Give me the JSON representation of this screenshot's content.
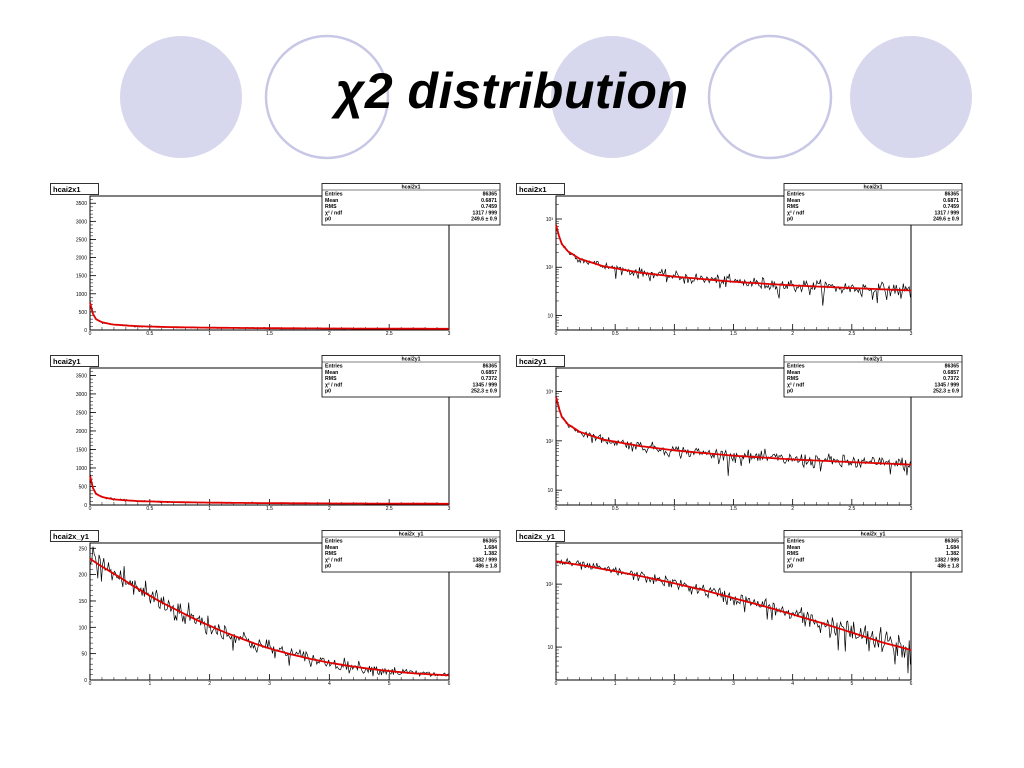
{
  "slide": {
    "title": "χ2 distribution",
    "decor_circle_fill": "#d7d7ee",
    "decor_circle_stroke": "#c8c8e6"
  },
  "colors": {
    "data": "#000000",
    "fit": "#e00000",
    "frame": "#000000",
    "stats_bg": "#ffffff"
  },
  "chart_data": [
    {
      "type": "line",
      "name_label": "hcai2x1",
      "scale": "linear",
      "xlim": [
        0,
        3
      ],
      "ylim": [
        0,
        3700
      ],
      "xticks": [
        {
          "v": 0,
          "t": "0"
        },
        {
          "v": 0.5,
          "t": "0.5"
        },
        {
          "v": 1,
          "t": "1"
        },
        {
          "v": 1.5,
          "t": "1.5"
        },
        {
          "v": 2,
          "t": "2"
        },
        {
          "v": 2.5,
          "t": "2.5"
        },
        {
          "v": 3,
          "t": "3"
        }
      ],
      "yticks": [
        {
          "v": 0,
          "t": "0"
        },
        {
          "v": 500,
          "t": "500"
        },
        {
          "v": 1000,
          "t": "1000"
        },
        {
          "v": 1500,
          "t": "1500"
        },
        {
          "v": 2000,
          "t": "2000"
        },
        {
          "v": 2500,
          "t": "2500"
        },
        {
          "v": 3000,
          "t": "3000"
        },
        {
          "v": 3500,
          "t": "3500"
        }
      ],
      "fit": {
        "x": [
          0.005,
          0.02,
          0.05,
          0.1,
          0.2,
          0.4,
          0.7,
          1.0,
          1.5,
          2.0,
          2.5,
          3.0
        ],
        "y": [
          760,
          480,
          300,
          215,
          150,
          105,
          78,
          64,
          50,
          42,
          37,
          33
        ]
      },
      "stats": {
        "title": "hcai2x1",
        "rows": [
          [
            "Entries",
            "86365"
          ],
          [
            "Mean",
            "0.6871"
          ],
          [
            "RMS",
            "0.7459"
          ],
          [
            "χ² / ndf",
            "1317 / 999"
          ],
          [
            "p0",
            "249.6 ± 0.9"
          ]
        ]
      }
    },
    {
      "type": "line",
      "name_label": "hcai2x1",
      "scale": "log",
      "xlim": [
        0,
        3
      ],
      "ylim": [
        5,
        3000
      ],
      "xticks": [
        {
          "v": 0,
          "t": "0"
        },
        {
          "v": 0.5,
          "t": "0.5"
        },
        {
          "v": 1,
          "t": "1"
        },
        {
          "v": 1.5,
          "t": "1.5"
        },
        {
          "v": 2,
          "t": "2"
        },
        {
          "v": 2.5,
          "t": "2.5"
        },
        {
          "v": 3,
          "t": "3"
        }
      ],
      "yticks": [
        {
          "v": 10,
          "t": "10"
        },
        {
          "v": 100,
          "t": "10²"
        },
        {
          "v": 1000,
          "t": "10³"
        }
      ],
      "fit": {
        "x": [
          0.005,
          0.02,
          0.05,
          0.1,
          0.2,
          0.4,
          0.7,
          1.0,
          1.5,
          2.0,
          2.5,
          3.0
        ],
        "y": [
          760,
          480,
          300,
          215,
          150,
          105,
          78,
          64,
          50,
          42,
          37,
          33
        ]
      },
      "stats": {
        "title": "hcai2x1",
        "rows": [
          [
            "Entries",
            "86365"
          ],
          [
            "Mean",
            "0.6871"
          ],
          [
            "RMS",
            "0.7459"
          ],
          [
            "χ² / ndf",
            "1317 / 999"
          ],
          [
            "p0",
            "249.6 ± 0.9"
          ]
        ]
      }
    },
    {
      "type": "line",
      "name_label": "hcai2y1",
      "scale": "linear",
      "xlim": [
        0,
        3
      ],
      "ylim": [
        0,
        3700
      ],
      "xticks": [
        {
          "v": 0,
          "t": "0"
        },
        {
          "v": 0.5,
          "t": "0.5"
        },
        {
          "v": 1,
          "t": "1"
        },
        {
          "v": 1.5,
          "t": "1.5"
        },
        {
          "v": 2,
          "t": "2"
        },
        {
          "v": 2.5,
          "t": "2.5"
        },
        {
          "v": 3,
          "t": "3"
        }
      ],
      "yticks": [
        {
          "v": 0,
          "t": "0"
        },
        {
          "v": 500,
          "t": "500"
        },
        {
          "v": 1000,
          "t": "1000"
        },
        {
          "v": 1500,
          "t": "1500"
        },
        {
          "v": 2000,
          "t": "2000"
        },
        {
          "v": 2500,
          "t": "2500"
        },
        {
          "v": 3000,
          "t": "3000"
        },
        {
          "v": 3500,
          "t": "3500"
        }
      ],
      "fit": {
        "x": [
          0.005,
          0.02,
          0.05,
          0.1,
          0.2,
          0.4,
          0.7,
          1.0,
          1.5,
          2.0,
          2.5,
          3.0
        ],
        "y": [
          780,
          490,
          305,
          218,
          152,
          106,
          79,
          64,
          50,
          42,
          37,
          33
        ]
      },
      "stats": {
        "title": "hcai2y1",
        "rows": [
          [
            "Entries",
            "86365"
          ],
          [
            "Mean",
            "0.6857"
          ],
          [
            "RMS",
            "0.7372"
          ],
          [
            "χ² / ndf",
            "1345 / 999"
          ],
          [
            "p0",
            "252.3 ± 0.9"
          ]
        ]
      }
    },
    {
      "type": "line",
      "name_label": "hcai2y1",
      "scale": "log",
      "xlim": [
        0,
        3
      ],
      "ylim": [
        5,
        3000
      ],
      "xticks": [
        {
          "v": 0,
          "t": "0"
        },
        {
          "v": 0.5,
          "t": "0.5"
        },
        {
          "v": 1,
          "t": "1"
        },
        {
          "v": 1.5,
          "t": "1.5"
        },
        {
          "v": 2,
          "t": "2"
        },
        {
          "v": 2.5,
          "t": "2.5"
        },
        {
          "v": 3,
          "t": "3"
        }
      ],
      "yticks": [
        {
          "v": 10,
          "t": "10"
        },
        {
          "v": 100,
          "t": "10²"
        },
        {
          "v": 1000,
          "t": "10³"
        }
      ],
      "fit": {
        "x": [
          0.005,
          0.02,
          0.05,
          0.1,
          0.2,
          0.4,
          0.7,
          1.0,
          1.5,
          2.0,
          2.5,
          3.0
        ],
        "y": [
          780,
          490,
          305,
          218,
          152,
          106,
          79,
          64,
          50,
          42,
          37,
          33
        ]
      },
      "stats": {
        "title": "hcai2y1",
        "rows": [
          [
            "Entries",
            "86365"
          ],
          [
            "Mean",
            "0.6857"
          ],
          [
            "RMS",
            "0.7372"
          ],
          [
            "χ² / ndf",
            "1345 / 999"
          ],
          [
            "p0",
            "252.3 ± 0.9"
          ]
        ]
      }
    },
    {
      "type": "line",
      "name_label": "hcai2x_y1",
      "scale": "linear",
      "xlim": [
        0,
        6
      ],
      "ylim": [
        0,
        260
      ],
      "xticks": [
        {
          "v": 0,
          "t": "0"
        },
        {
          "v": 1,
          "t": "1"
        },
        {
          "v": 2,
          "t": "2"
        },
        {
          "v": 3,
          "t": "3"
        },
        {
          "v": 4,
          "t": "4"
        },
        {
          "v": 5,
          "t": "5"
        },
        {
          "v": 6,
          "t": "6"
        }
      ],
      "yticks": [
        {
          "v": 0,
          "t": "0"
        },
        {
          "v": 50,
          "t": "50"
        },
        {
          "v": 100,
          "t": "100"
        },
        {
          "v": 150,
          "t": "150"
        },
        {
          "v": 200,
          "t": "200"
        },
        {
          "v": 250,
          "t": "250"
        }
      ],
      "fit": {
        "x": [
          0,
          0.5,
          1,
          1.5,
          2,
          2.5,
          3,
          3.5,
          4,
          4.5,
          5,
          5.5,
          6
        ],
        "y": [
          230,
          195,
          160,
          130,
          103,
          80,
          60,
          45,
          33,
          24,
          17,
          12,
          9
        ]
      },
      "stats": {
        "title": "hcai2x_y1",
        "rows": [
          [
            "Entries",
            "86365"
          ],
          [
            "Mean",
            "1.684"
          ],
          [
            "RMS",
            "1.382"
          ],
          [
            "χ² / ndf",
            "1382 / 999"
          ],
          [
            "p0",
            "486 ± 1.8"
          ]
        ]
      }
    },
    {
      "type": "line",
      "name_label": "hcai2x_y1",
      "scale": "log",
      "xlim": [
        0,
        6
      ],
      "ylim": [
        3,
        450
      ],
      "xticks": [
        {
          "v": 0,
          "t": "0"
        },
        {
          "v": 1,
          "t": "1"
        },
        {
          "v": 2,
          "t": "2"
        },
        {
          "v": 3,
          "t": "3"
        },
        {
          "v": 4,
          "t": "4"
        },
        {
          "v": 5,
          "t": "5"
        },
        {
          "v": 6,
          "t": "6"
        }
      ],
      "yticks": [
        {
          "v": 10,
          "t": "10"
        },
        {
          "v": 100,
          "t": "10²"
        }
      ],
      "fit": {
        "x": [
          0,
          0.5,
          1,
          1.5,
          2,
          2.5,
          3,
          3.5,
          4,
          4.5,
          5,
          5.5,
          6
        ],
        "y": [
          230,
          195,
          160,
          130,
          103,
          80,
          60,
          45,
          33,
          24,
          17,
          12,
          9
        ]
      },
      "stats": {
        "title": "hcai2x_y1",
        "rows": [
          [
            "Entries",
            "86365"
          ],
          [
            "Mean",
            "1.684"
          ],
          [
            "RMS",
            "1.382"
          ],
          [
            "χ² / ndf",
            "1382 / 999"
          ],
          [
            "p0",
            "486 ± 1.8"
          ]
        ]
      }
    }
  ]
}
